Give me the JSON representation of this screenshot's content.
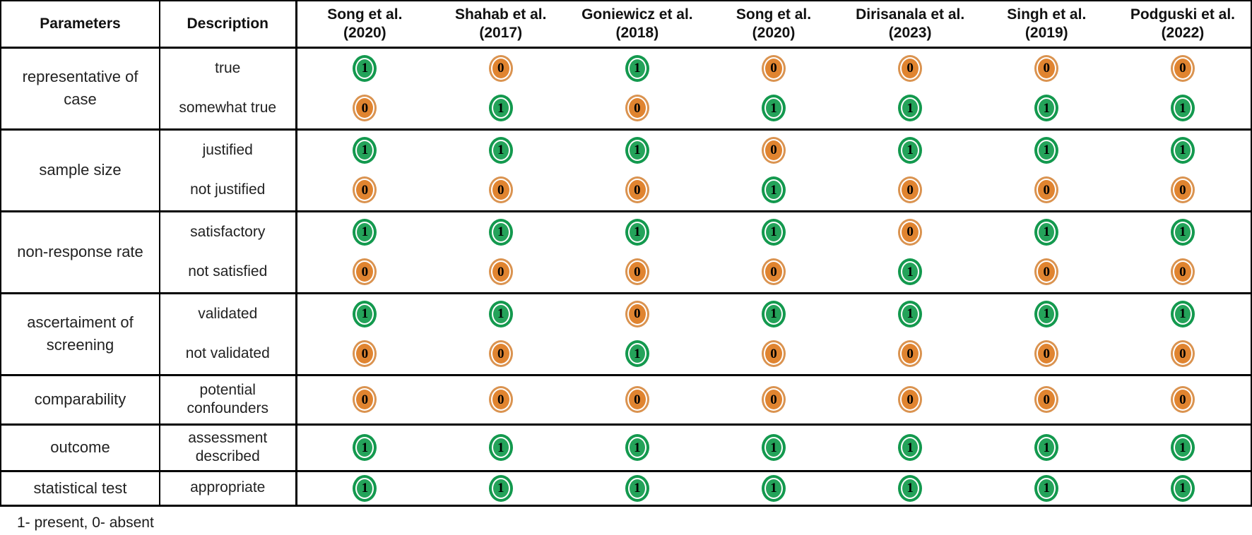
{
  "header": {
    "parameters": "Parameters",
    "description": "Description"
  },
  "studies": [
    {
      "name": "Song et al.",
      "year": "(2020)"
    },
    {
      "name": "Shahab et al.",
      "year": "(2017)"
    },
    {
      "name": "Goniewicz et al.",
      "year": "(2018)"
    },
    {
      "name": "Song et al.",
      "year": "(2020)"
    },
    {
      "name": "Dirisanala et al.",
      "year": "(2023)"
    },
    {
      "name": "Singh et al.",
      "year": "(2019)"
    },
    {
      "name": "Podguski et al.",
      "year": "(2022)"
    }
  ],
  "groups": [
    {
      "parameter": "representative of case",
      "rows": [
        {
          "label": "true",
          "values": [
            1,
            0,
            1,
            0,
            0,
            0,
            0
          ]
        },
        {
          "label": "somewhat true",
          "values": [
            0,
            1,
            0,
            1,
            1,
            1,
            1
          ]
        }
      ]
    },
    {
      "parameter": "sample size",
      "rows": [
        {
          "label": "justified",
          "values": [
            1,
            1,
            1,
            0,
            1,
            1,
            1
          ]
        },
        {
          "label": "not justified",
          "values": [
            0,
            0,
            0,
            1,
            0,
            0,
            0
          ]
        }
      ]
    },
    {
      "parameter": "non-response rate",
      "rows": [
        {
          "label": "satisfactory",
          "values": [
            1,
            1,
            1,
            1,
            0,
            1,
            1
          ]
        },
        {
          "label": "not satisfied",
          "values": [
            0,
            0,
            0,
            0,
            1,
            0,
            0
          ]
        }
      ]
    },
    {
      "parameter": "ascertaiment of screening",
      "rows": [
        {
          "label": "validated",
          "values": [
            1,
            1,
            0,
            1,
            1,
            1,
            1
          ]
        },
        {
          "label": "not validated",
          "values": [
            0,
            0,
            1,
            0,
            0,
            0,
            0
          ]
        }
      ]
    },
    {
      "parameter": "comparability",
      "rows": [
        {
          "label": "potential confounders",
          "values": [
            0,
            0,
            0,
            0,
            0,
            0,
            0
          ]
        }
      ]
    },
    {
      "parameter": "outcome",
      "rows": [
        {
          "label": "assessment described",
          "values": [
            1,
            1,
            1,
            1,
            1,
            1,
            1
          ]
        }
      ]
    },
    {
      "parameter": "statistical test",
      "rows": [
        {
          "label": "appropriate",
          "values": [
            1,
            1,
            1,
            1,
            1,
            1,
            1
          ]
        }
      ]
    }
  ],
  "legend": "1- present, 0- absent",
  "colors": {
    "present_fill": "#24a35a",
    "present_ring": "#13994e",
    "absent_fill": "#e08430",
    "absent_ring": "#da9350"
  }
}
